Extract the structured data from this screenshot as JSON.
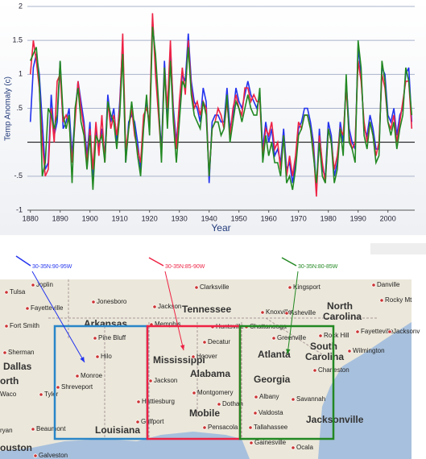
{
  "chart_data": {
    "type": "line",
    "ylabel": "Temp Anomaly (c)",
    "xlabel": "Year",
    "xlim": [
      1879,
      2009
    ],
    "ylim": [
      -1,
      2
    ],
    "xticks": [
      1880,
      1890,
      1900,
      1910,
      1920,
      1930,
      1940,
      1950,
      1960,
      1970,
      1980,
      1990,
      2000
    ],
    "yticks": [
      -1,
      {
        "value": -0.5,
        "label": "-.5"
      },
      {
        "value": 0.5,
        "label": ".5"
      },
      1,
      1.5,
      2
    ],
    "grid": true,
    "x": [
      1880,
      1881,
      1882,
      1883,
      1884,
      1885,
      1886,
      1887,
      1888,
      1889,
      1890,
      1891,
      1892,
      1893,
      1894,
      1895,
      1896,
      1897,
      1898,
      1899,
      1900,
      1901,
      1902,
      1903,
      1904,
      1905,
      1906,
      1907,
      1908,
      1909,
      1910,
      1911,
      1912,
      1913,
      1914,
      1915,
      1916,
      1917,
      1918,
      1919,
      1920,
      1921,
      1922,
      1923,
      1924,
      1925,
      1926,
      1927,
      1928,
      1929,
      1930,
      1931,
      1932,
      1933,
      1934,
      1935,
      1936,
      1937,
      1938,
      1939,
      1940,
      1941,
      1942,
      1943,
      1944,
      1945,
      1946,
      1947,
      1948,
      1949,
      1950,
      1951,
      1952,
      1953,
      1954,
      1955,
      1956,
      1957,
      1958,
      1959,
      1960,
      1961,
      1962,
      1963,
      1964,
      1965,
      1966,
      1967,
      1968,
      1969,
      1970,
      1971,
      1972,
      1973,
      1974,
      1975,
      1976,
      1977,
      1978,
      1979,
      1980,
      1981,
      1982,
      1983,
      1984,
      1985,
      1986,
      1987,
      1988,
      1989,
      1990,
      1991,
      1992,
      1993,
      1994,
      1995,
      1996,
      1997,
      1998,
      1999,
      2000,
      2001,
      2002,
      2003,
      2004,
      2005,
      2006,
      2007,
      2008
    ],
    "series": [
      {
        "name": "30-35N:90-95W",
        "color": "#2233ee",
        "values": [
          0.3,
          1.1,
          1.3,
          1.0,
          0.3,
          -0.4,
          -0.3,
          0.7,
          0.1,
          0.3,
          1.2,
          0.2,
          0.3,
          0.5,
          -0.2,
          0.4,
          0.9,
          0.6,
          0.3,
          -0.2,
          0.3,
          -0.6,
          0.2,
          -0.1,
          0.2,
          -0.2,
          0.7,
          0.3,
          0.5,
          0.0,
          0.6,
          1.5,
          -0.3,
          0.3,
          0.4,
          0.3,
          0.0,
          -0.4,
          0.3,
          0.6,
          0.2,
          1.8,
          1.2,
          0.5,
          -0.1,
          1.2,
          0.4,
          1.4,
          0.5,
          0.0,
          0.5,
          1.0,
          0.9,
          1.6,
          0.9,
          0.6,
          0.5,
          0.3,
          0.8,
          0.6,
          -0.6,
          0.3,
          0.4,
          0.4,
          0.3,
          0.3,
          0.8,
          0.2,
          0.4,
          0.8,
          0.6,
          0.5,
          0.7,
          0.9,
          0.7,
          0.6,
          0.5,
          0.7,
          -0.1,
          0.3,
          0.0,
          0.2,
          -0.2,
          -0.1,
          -0.3,
          0.2,
          -0.4,
          -0.3,
          -0.6,
          -0.3,
          0.2,
          0.3,
          0.5,
          0.5,
          0.3,
          0.0,
          -0.7,
          0.2,
          -0.4,
          -0.5,
          0.3,
          0.1,
          -0.5,
          -0.3,
          0.3,
          0.0,
          0.9,
          0.2,
          0.0,
          -0.1,
          1.4,
          1.0,
          0.2,
          0.1,
          0.4,
          0.2,
          -0.1,
          -0.1,
          1.1,
          1.0,
          0.4,
          0.3,
          0.5,
          0.1,
          0.4,
          0.5,
          1.0,
          1.1,
          0.3
        ]
      },
      {
        "name": "30-35N:85-90W",
        "color": "#ee2244",
        "values": [
          1.0,
          1.5,
          1.2,
          0.8,
          0.0,
          -0.5,
          -0.4,
          0.5,
          0.0,
          0.9,
          1.0,
          0.3,
          0.4,
          0.3,
          -0.3,
          0.3,
          0.9,
          0.5,
          0.2,
          -0.3,
          0.2,
          -0.4,
          0.3,
          -0.2,
          0.4,
          -0.3,
          0.6,
          0.2,
          0.4,
          0.1,
          0.5,
          1.6,
          -0.1,
          0.2,
          0.5,
          0.1,
          -0.1,
          -0.3,
          0.4,
          0.5,
          0.3,
          1.9,
          1.0,
          0.4,
          -0.2,
          1.1,
          0.5,
          1.5,
          0.4,
          -0.1,
          0.6,
          1.1,
          0.7,
          1.5,
          0.8,
          0.5,
          0.6,
          0.4,
          0.6,
          0.5,
          -0.5,
          0.2,
          0.3,
          0.5,
          0.4,
          0.2,
          0.6,
          0.1,
          0.5,
          0.7,
          0.5,
          0.4,
          0.8,
          0.8,
          0.6,
          0.7,
          0.6,
          0.6,
          -0.2,
          0.2,
          0.1,
          0.3,
          -0.1,
          0.0,
          -0.4,
          0.1,
          -0.5,
          -0.2,
          -0.5,
          -0.2,
          0.3,
          0.2,
          0.4,
          0.4,
          0.2,
          -0.1,
          -0.8,
          0.1,
          -0.3,
          -0.6,
          0.2,
          0.0,
          -0.4,
          -0.2,
          0.2,
          0.1,
          0.8,
          0.1,
          -0.1,
          0.0,
          1.2,
          0.9,
          0.3,
          0.0,
          0.3,
          0.1,
          -0.2,
          0.0,
          1.0,
          0.8,
          0.3,
          0.2,
          0.4,
          0.0,
          0.3,
          0.6,
          0.9,
          0.9,
          0.2
        ]
      },
      {
        "name": "30-35N:80-85W",
        "color": "#228822",
        "values": [
          1.2,
          1.3,
          1.4,
          0.9,
          -0.5,
          -0.3,
          0.5,
          0.4,
          0.2,
          0.4,
          1.2,
          0.4,
          0.2,
          0.4,
          -0.6,
          0.5,
          0.8,
          0.3,
          0.1,
          -0.4,
          0.1,
          -0.7,
          0.1,
          0.0,
          0.1,
          -0.3,
          0.6,
          0.4,
          0.3,
          -0.1,
          0.4,
          1.3,
          -0.3,
          0.2,
          0.6,
          0.2,
          -0.2,
          -0.5,
          0.2,
          0.7,
          0.1,
          1.7,
          1.3,
          0.6,
          -0.3,
          1.1,
          0.2,
          1.2,
          0.3,
          -0.3,
          0.3,
          0.9,
          0.8,
          1.4,
          0.7,
          0.4,
          0.3,
          0.2,
          0.6,
          0.4,
          -0.5,
          0.2,
          0.3,
          0.3,
          0.1,
          0.2,
          0.7,
          0.0,
          0.3,
          0.6,
          0.5,
          0.3,
          0.5,
          0.7,
          0.5,
          0.4,
          0.4,
          0.8,
          -0.3,
          0.1,
          -0.2,
          0.0,
          -0.3,
          -0.3,
          -0.5,
          0.1,
          -0.6,
          -0.5,
          -0.7,
          -0.4,
          0.1,
          0.2,
          0.4,
          0.4,
          0.2,
          -0.2,
          -0.6,
          0.0,
          -0.5,
          -0.6,
          0.2,
          0.0,
          -0.6,
          -0.4,
          0.2,
          -0.2,
          1.0,
          0.0,
          -0.1,
          -0.3,
          1.5,
          1.1,
          0.1,
          -0.1,
          0.3,
          0.1,
          -0.3,
          -0.2,
          1.2,
          0.9,
          0.3,
          0.1,
          0.3,
          -0.1,
          0.2,
          0.4,
          1.1,
          0.9,
          0.4
        ]
      }
    ]
  },
  "map": {
    "labels": [
      "Tulsa",
      "Joplin",
      "Fayetteville",
      "Jonesboro",
      "Clarksville",
      "Kingsport",
      "Danville",
      "Tennessee",
      "Jackson",
      "Knoxville",
      "Asheville",
      "North",
      "Carolina",
      "Rocky Mt",
      "Fort Smith",
      "Arkansas",
      "Memphis",
      "Huntsville",
      "Chattanooga",
      "Fayetteville",
      "Jacksonv",
      "Pine Bluff",
      "Decatur",
      "Greenville",
      "Rock Hill",
      "Wilmington",
      "Sherman",
      "Hilo",
      "Mississippi",
      "Hoover",
      "Atlanta",
      "South",
      "Carolina",
      "Dallas",
      "Monroe",
      "Jackson",
      "Alabama",
      "Charleston",
      "Georgia",
      "Shreveport",
      "orth",
      "Tyler",
      "Waco",
      "Montgomery",
      "Hattiesburg",
      "Dothan",
      "Albany",
      "Savannah",
      "Mobile",
      "Valdosta",
      "Beaumont",
      "Louisiana",
      "Gulfport",
      "Pensacola",
      "Tallahassee",
      "Jacksonville",
      "ryan",
      "Gainesville",
      "Ocala",
      "ouston",
      "Galveston"
    ]
  }
}
